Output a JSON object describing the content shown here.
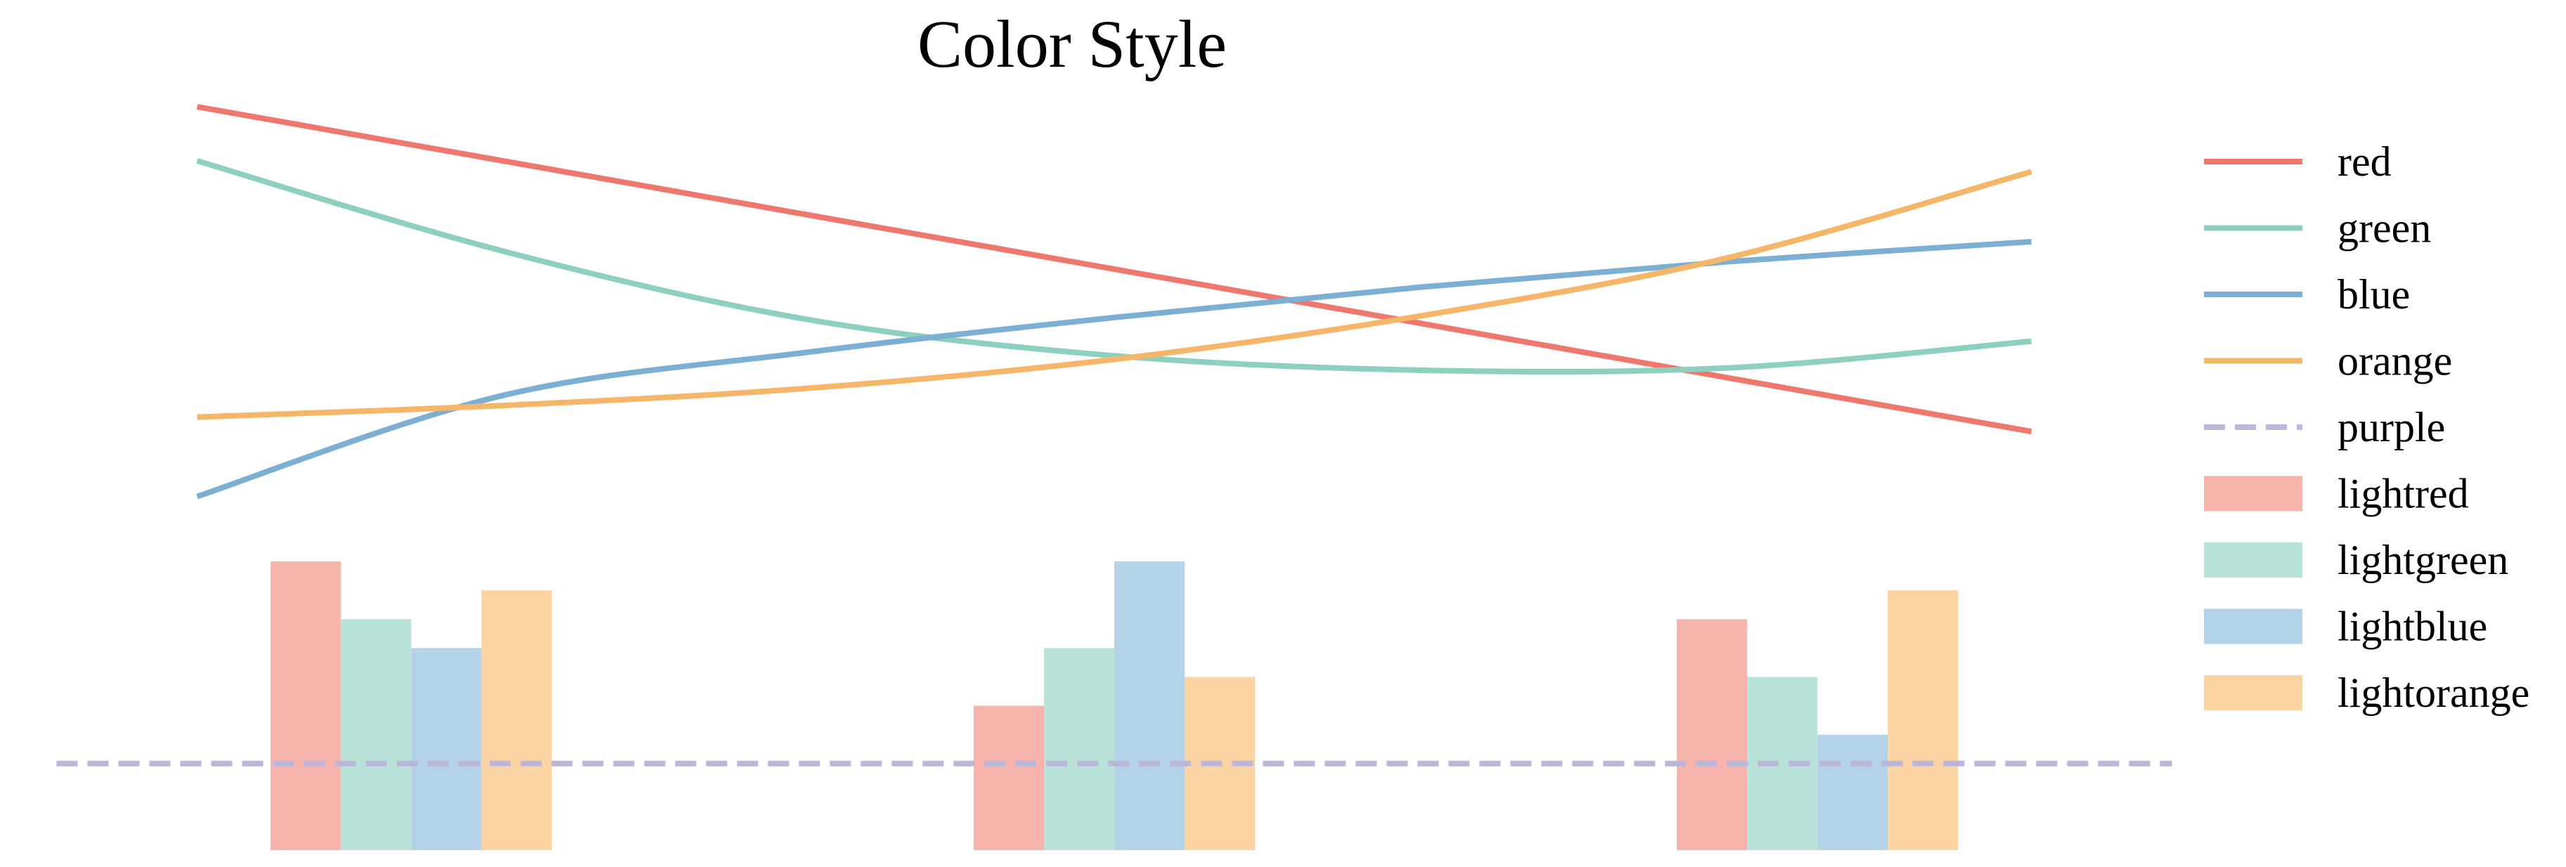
{
  "chart_data": {
    "type": "line+bar",
    "title": "Color Style",
    "xlabel": "",
    "ylabel": "",
    "axes_visible": false,
    "grid": false,
    "legend_placement": "right",
    "xlim": [
      -0.15,
      3.15
    ],
    "ylim": [
      0,
      1.1
    ],
    "colors": {
      "red": "#F0776D",
      "green": "#8ED0C0",
      "blue": "#7BAFD4",
      "orange": "#F6B66A",
      "purple": "#BDB6DB",
      "lightred": "#F6B4AC",
      "lightgreen": "#B9E3D8",
      "lightblue": "#B4D2E8",
      "lightorange": "#FCD4A3"
    },
    "series": [
      {
        "name": "red",
        "type": "line",
        "style": "solid",
        "color_key": "red",
        "x": [
          0.0,
          0.5,
          1.0,
          1.5,
          2.0,
          2.5,
          3.0
        ],
        "y": [
          1.03,
          0.955,
          0.88,
          0.805,
          0.73,
          0.655,
          0.58
        ]
      },
      {
        "name": "green",
        "type": "line",
        "style": "solid",
        "color_key": "green",
        "x": [
          0.0,
          0.5,
          1.0,
          1.5,
          2.0,
          2.5,
          3.0
        ],
        "y": [
          0.955,
          0.83,
          0.735,
          0.685,
          0.665,
          0.668,
          0.705
        ]
      },
      {
        "name": "blue",
        "type": "line",
        "style": "solid",
        "color_key": "blue",
        "x": [
          0.0,
          0.5,
          1.0,
          1.5,
          2.0,
          2.5,
          3.0
        ],
        "y": [
          0.49,
          0.63,
          0.69,
          0.738,
          0.78,
          0.815,
          0.843
        ]
      },
      {
        "name": "orange",
        "type": "line",
        "style": "solid",
        "color_key": "orange",
        "x": [
          0.0,
          0.5,
          1.0,
          1.5,
          2.0,
          2.5,
          3.0
        ],
        "y": [
          0.6,
          0.616,
          0.64,
          0.68,
          0.74,
          0.82,
          0.94
        ]
      },
      {
        "name": "purple",
        "type": "hline",
        "style": "dashed",
        "color_key": "purple",
        "y": 0.12,
        "x_range": [
          -0.23,
          3.23
        ]
      }
    ],
    "bar_groups": {
      "centers": [
        0.35,
        1.5,
        2.65
      ],
      "bar_width": 0.115,
      "series": [
        {
          "name": "lightred",
          "color_key": "lightred",
          "values": [
            0.4,
            0.2,
            0.32
          ]
        },
        {
          "name": "lightgreen",
          "color_key": "lightgreen",
          "values": [
            0.32,
            0.28,
            0.24
          ]
        },
        {
          "name": "lightblue",
          "color_key": "lightblue",
          "values": [
            0.28,
            0.4,
            0.16
          ]
        },
        {
          "name": "lightorange",
          "color_key": "lightorange",
          "values": [
            0.36,
            0.24,
            0.36
          ]
        }
      ]
    },
    "legend": [
      {
        "label": "red",
        "kind": "line",
        "color_key": "red"
      },
      {
        "label": "green",
        "kind": "line",
        "color_key": "green"
      },
      {
        "label": "blue",
        "kind": "line",
        "color_key": "blue"
      },
      {
        "label": "orange",
        "kind": "line",
        "color_key": "orange"
      },
      {
        "label": "purple",
        "kind": "dash",
        "color_key": "purple"
      },
      {
        "label": "lightred",
        "kind": "patch",
        "color_key": "lightred"
      },
      {
        "label": "lightgreen",
        "kind": "patch",
        "color_key": "lightgreen"
      },
      {
        "label": "lightblue",
        "kind": "patch",
        "color_key": "lightblue"
      },
      {
        "label": "lightorange",
        "kind": "patch",
        "color_key": "lightorange"
      }
    ]
  }
}
